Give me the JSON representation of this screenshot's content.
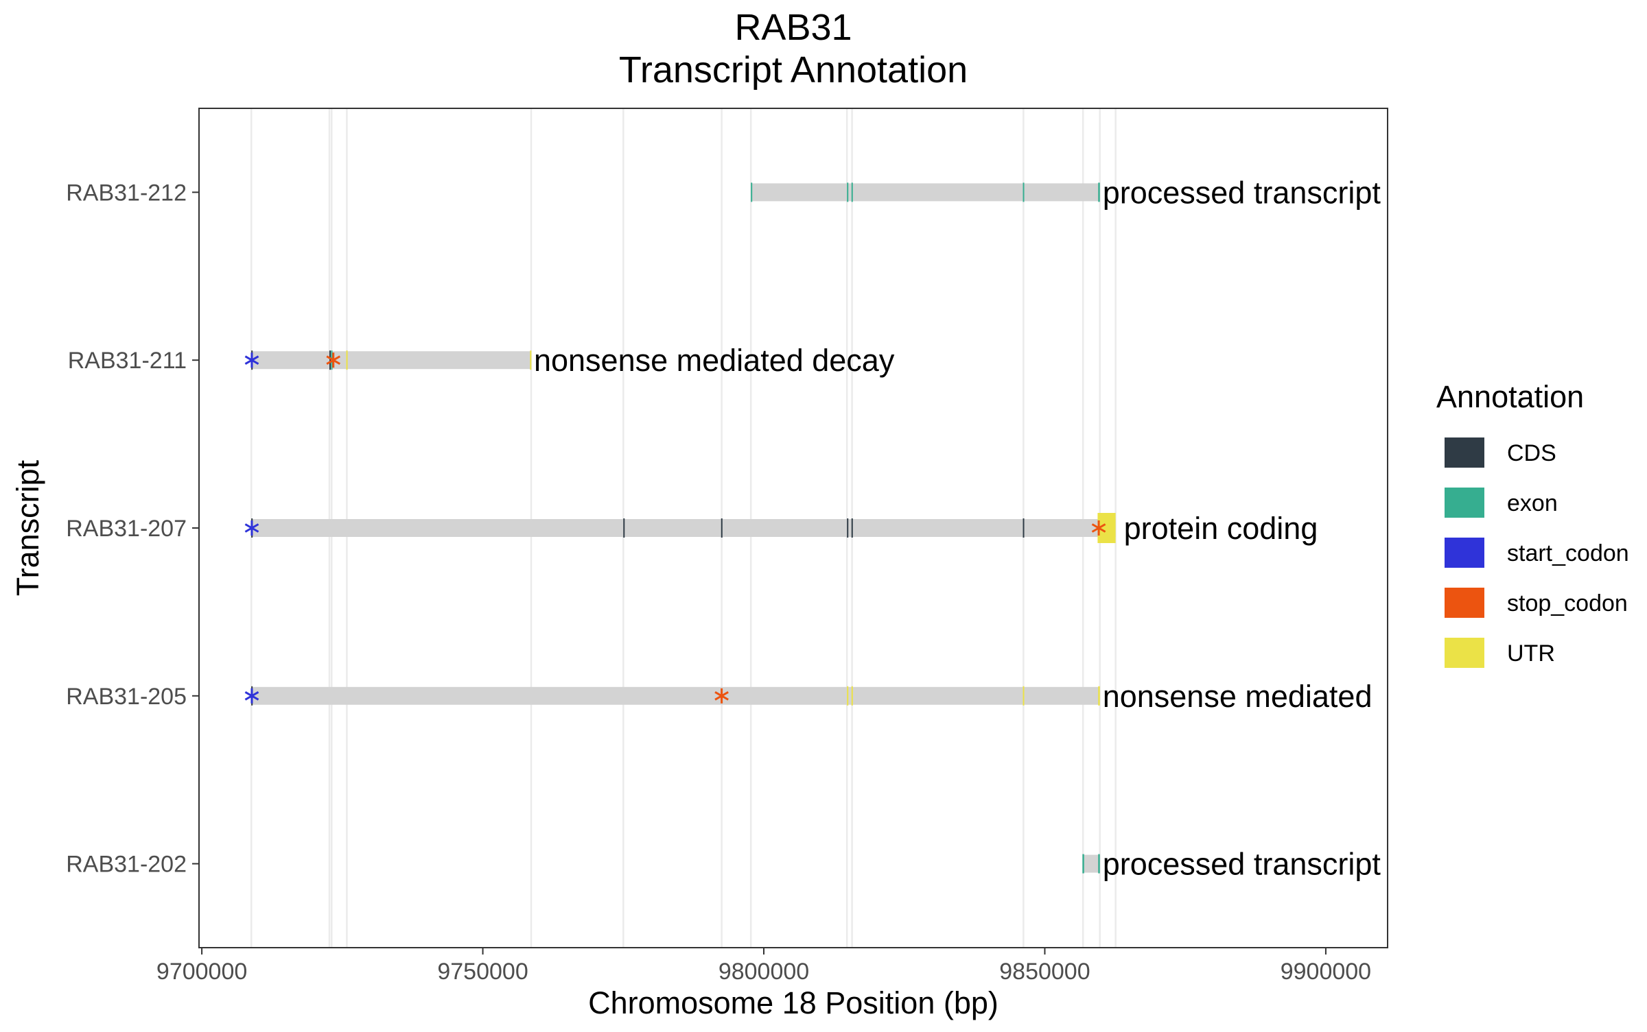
{
  "chart_data": {
    "type": "gene_track",
    "title": [
      "RAB31",
      "Transcript Annotation"
    ],
    "xlabel": "Chromosome 18 Position (bp)",
    "ylabel": "Transcript",
    "xlim": [
      9699500,
      9911000
    ],
    "x_ticks": [
      9700000,
      9750000,
      9800000,
      9850000,
      9900000
    ],
    "x_tick_labels": [
      "9700000",
      "9750000",
      "9800000",
      "9850000",
      "9900000"
    ],
    "grid": "vertical lines at feature boundaries",
    "legend": {
      "title": "Annotation",
      "position": "right",
      "items": [
        {
          "name": "CDS",
          "color": "#2f3b45"
        },
        {
          "name": "exon",
          "color": "#36ae90"
        },
        {
          "name": "start_codon",
          "color": "#2f33d9"
        },
        {
          "name": "stop_codon",
          "color": "#ec5410"
        },
        {
          "name": "UTR",
          "color": "#ebe247"
        }
      ]
    },
    "boundaries": [
      9708800,
      9722700,
      9723100,
      9725800,
      9758600,
      9775000,
      9792500,
      9797700,
      9814800,
      9815700,
      9846200,
      9856800,
      9859800,
      9862600
    ],
    "transcripts": [
      {
        "name": "RAB31-212",
        "biotype": "processed transcript",
        "start": 9797700,
        "end": 9859800,
        "features": [
          {
            "type": "exon",
            "start": 9797700,
            "end": 9797900
          },
          {
            "type": "exon",
            "start": 9814800,
            "end": 9815000
          },
          {
            "type": "exon",
            "start": 9815600,
            "end": 9815800
          },
          {
            "type": "exon",
            "start": 9846100,
            "end": 9846300
          },
          {
            "type": "exon",
            "start": 9859500,
            "end": 9859800
          }
        ]
      },
      {
        "name": "RAB31-211",
        "biotype": "nonsense mediated decay",
        "start": 9708800,
        "end": 9758600,
        "features": [
          {
            "type": "CDS",
            "start": 9708800,
            "end": 9709000
          },
          {
            "type": "CDS",
            "start": 9722700,
            "end": 9722900
          },
          {
            "type": "exon",
            "start": 9723000,
            "end": 9723200
          },
          {
            "type": "UTR",
            "start": 9725700,
            "end": 9725900
          },
          {
            "type": "UTR",
            "start": 9758400,
            "end": 9758600
          },
          {
            "type": "start_codon",
            "at": 9708900
          },
          {
            "type": "stop_codon",
            "at": 9723400
          }
        ]
      },
      {
        "name": "RAB31-207",
        "biotype": "protein coding",
        "start": 9708800,
        "end": 9862600,
        "features": [
          {
            "type": "CDS",
            "start": 9708800,
            "end": 9709000
          },
          {
            "type": "CDS",
            "start": 9775000,
            "end": 9775200
          },
          {
            "type": "CDS",
            "start": 9792400,
            "end": 9792600
          },
          {
            "type": "CDS",
            "start": 9814800,
            "end": 9815000
          },
          {
            "type": "CDS",
            "start": 9815600,
            "end": 9815800
          },
          {
            "type": "CDS",
            "start": 9846100,
            "end": 9846300
          },
          {
            "type": "UTR",
            "start": 9859400,
            "end": 9862600
          },
          {
            "type": "start_codon",
            "at": 9708900
          },
          {
            "type": "stop_codon",
            "at": 9859600
          }
        ]
      },
      {
        "name": "RAB31-205",
        "biotype": "nonsense mediated",
        "start": 9708800,
        "end": 9859800,
        "features": [
          {
            "type": "CDS",
            "start": 9708800,
            "end": 9709000
          },
          {
            "type": "UTR",
            "start": 9814800,
            "end": 9815000
          },
          {
            "type": "UTR",
            "start": 9815600,
            "end": 9815800
          },
          {
            "type": "UTR",
            "start": 9846100,
            "end": 9846300
          },
          {
            "type": "UTR",
            "start": 9859500,
            "end": 9859800
          },
          {
            "type": "start_codon",
            "at": 9708900
          },
          {
            "type": "stop_codon",
            "at": 9792500
          }
        ]
      },
      {
        "name": "RAB31-202",
        "biotype": "processed transcript",
        "start": 9856800,
        "end": 9859800,
        "features": [
          {
            "type": "exon",
            "start": 9856700,
            "end": 9857000
          },
          {
            "type": "exon",
            "start": 9859500,
            "end": 9859800
          }
        ]
      }
    ]
  }
}
